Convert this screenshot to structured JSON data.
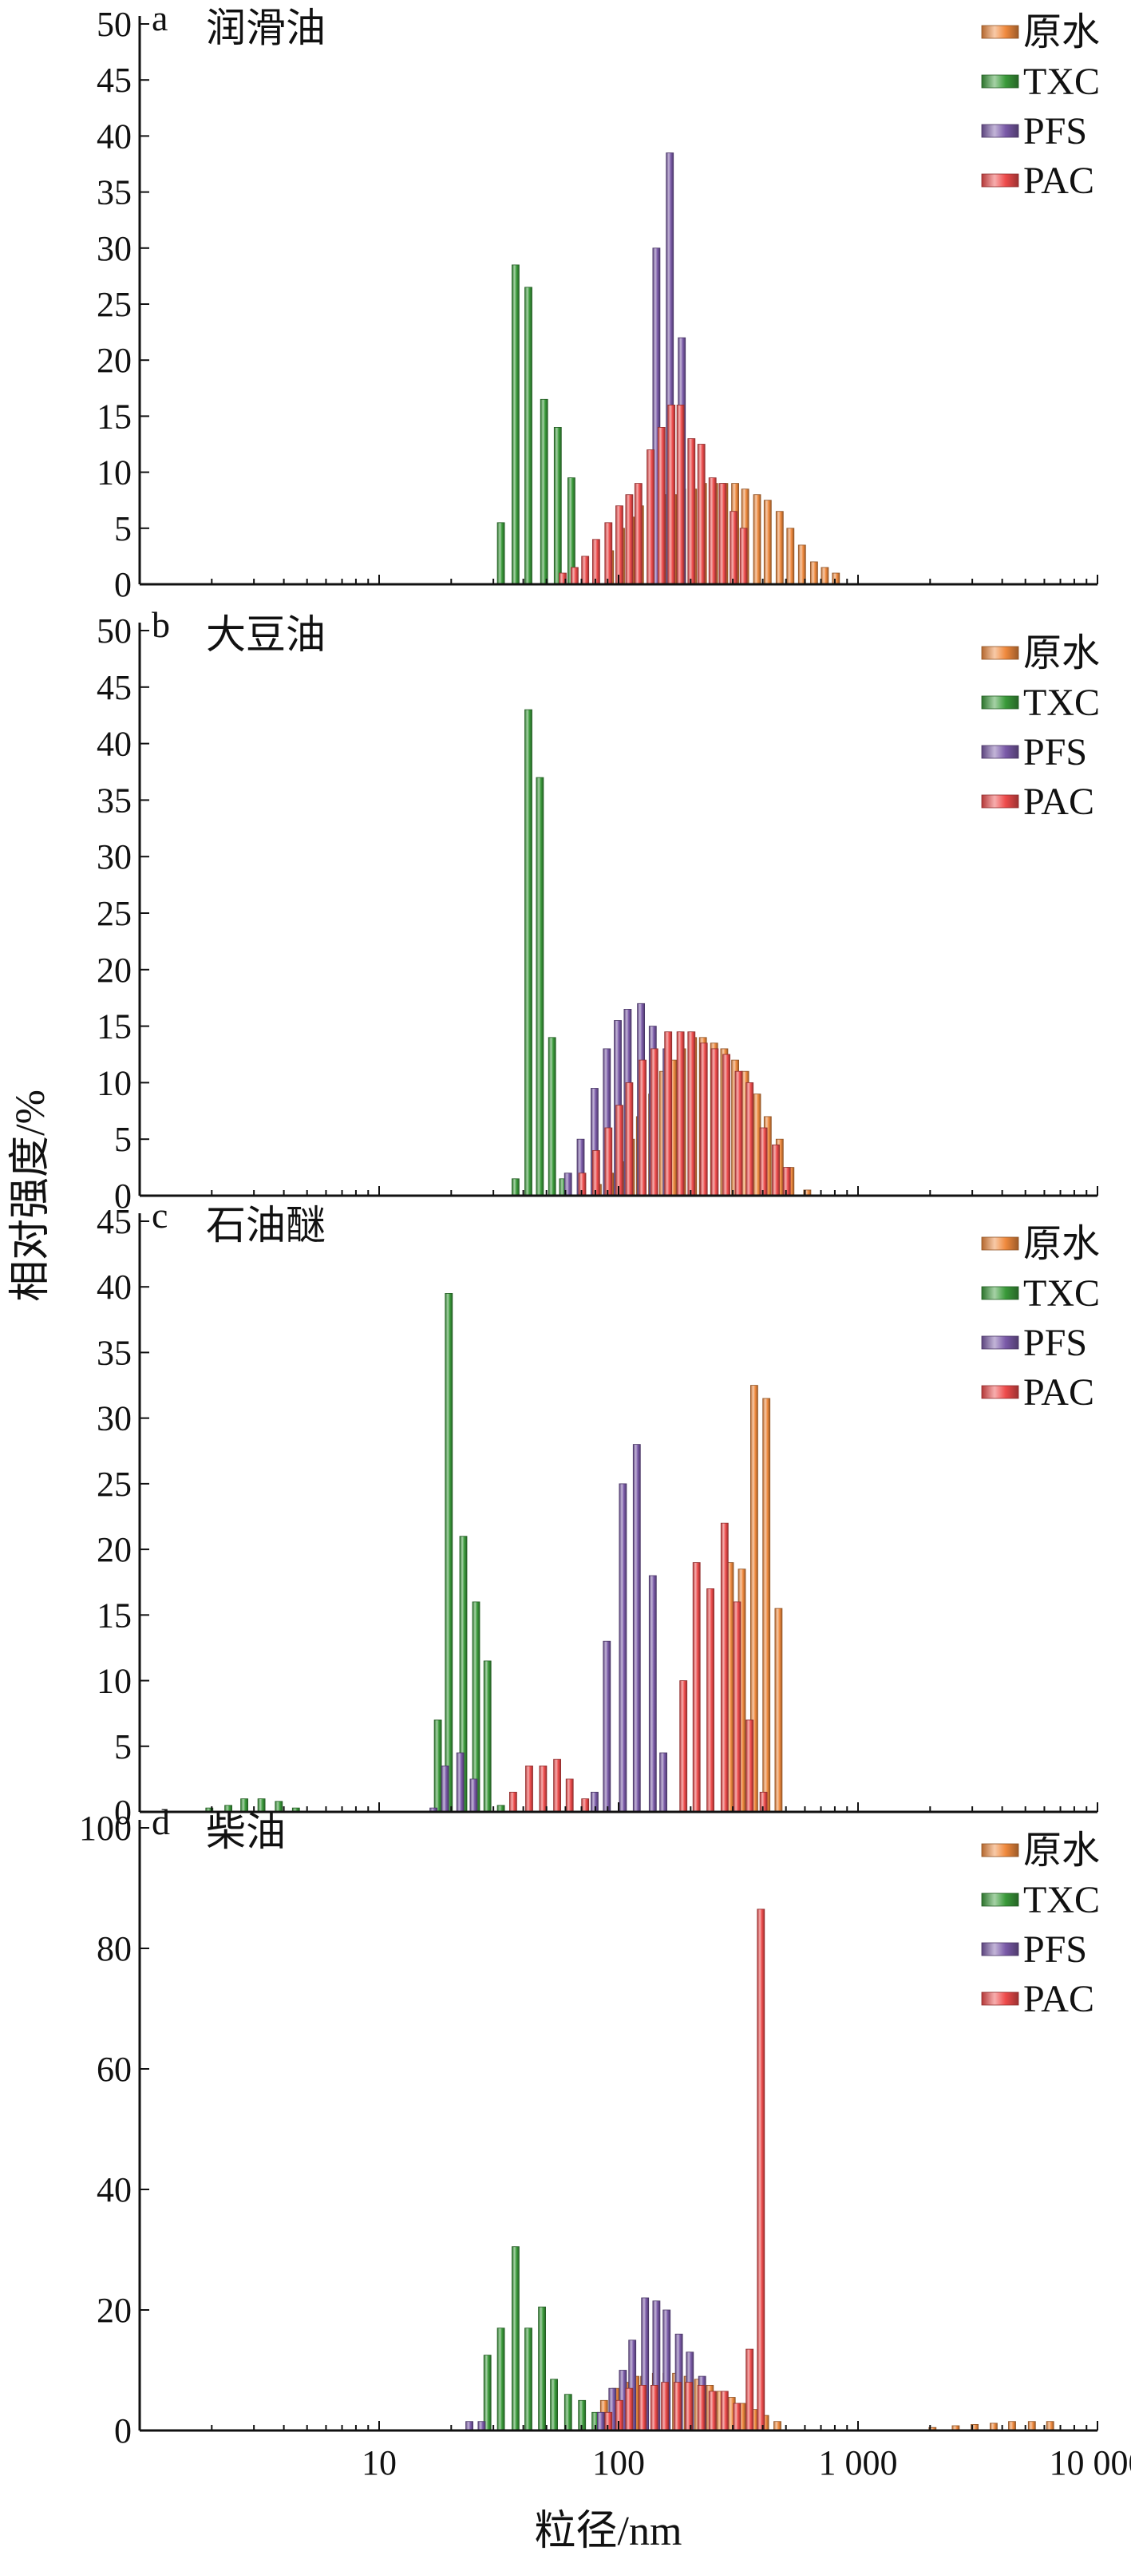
{
  "y_axis_title": "相对强度/%",
  "x_axis_title": "粒径/nm",
  "x_ticks": [
    {
      "value": 10,
      "label": "10"
    },
    {
      "value": 100,
      "label": "100"
    },
    {
      "value": 1000,
      "label": "1 000"
    },
    {
      "value": 10000,
      "label": "10 000"
    }
  ],
  "legend_labels": [
    "原水",
    "TXC",
    "PFS",
    "PAC"
  ],
  "colors": {
    "原水": "#f08a3e",
    "TXC": "#3a9a3a",
    "PFS": "#7a5aa8",
    "PAC": "#ee4b4b"
  },
  "chart_data": [
    {
      "type": "bar",
      "panel": "a",
      "title": "润滑油",
      "xscale": "log",
      "xlim": [
        1,
        10000
      ],
      "ylim": [
        0,
        50
      ],
      "yticks": [
        0,
        5,
        10,
        15,
        20,
        25,
        30,
        35,
        40,
        45,
        50
      ],
      "legend": "top-right",
      "series": [
        {
          "name": "原水",
          "x": [
            90,
            100,
            110,
            120,
            135,
            150,
            165,
            180,
            200,
            220,
            245,
            270,
            300,
            330,
            370,
            410,
            460,
            510,
            570,
            640,
            710,
            790
          ],
          "values": [
            3,
            5,
            6,
            7,
            7.5,
            8,
            8,
            8.5,
            8.5,
            9,
            9,
            9,
            9,
            8.5,
            8,
            7.5,
            6.5,
            5,
            3.5,
            2,
            1.5,
            1
          ]
        },
        {
          "name": "TXC",
          "x": [
            33,
            38,
            43,
            50,
            57,
            65
          ],
          "values": [
            5.5,
            28.5,
            26.5,
            16.5,
            14,
            9.5
          ]
        },
        {
          "name": "PFS",
          "x": [
            145,
            165,
            185
          ],
          "values": [
            30,
            38.5,
            22
          ]
        },
        {
          "name": "PAC",
          "x": [
            58,
            65,
            72,
            80,
            90,
            100,
            110,
            120,
            135,
            150,
            165,
            180,
            200,
            220,
            245,
            270,
            300,
            330
          ],
          "values": [
            1,
            1.5,
            2.5,
            4,
            5.5,
            7,
            8,
            9,
            12,
            14,
            16,
            16,
            13,
            12.5,
            9.5,
            9,
            6.5,
            5
          ]
        }
      ]
    },
    {
      "type": "bar",
      "panel": "b",
      "title": "大豆油",
      "xscale": "log",
      "xlim": [
        1,
        10000
      ],
      "ylim": [
        0,
        50
      ],
      "yticks": [
        0,
        5,
        10,
        15,
        20,
        25,
        30,
        35,
        40,
        45,
        50
      ],
      "legend": "top-right",
      "series": [
        {
          "name": "原水",
          "x": [
            80,
            90,
            100,
            110,
            120,
            135,
            150,
            165,
            180,
            200,
            220,
            245,
            270,
            300,
            330,
            370,
            410,
            460,
            510,
            600
          ],
          "values": [
            1,
            2,
            3,
            5,
            7,
            9,
            11,
            12,
            13,
            14,
            14,
            13.5,
            13,
            12,
            11,
            9,
            7,
            5,
            2.5,
            0.5
          ]
        },
        {
          "name": "TXC",
          "x": [
            38,
            43,
            48,
            54,
            60
          ],
          "values": [
            1.5,
            43,
            37,
            14,
            1.5
          ]
        },
        {
          "name": "PFS",
          "x": [
            62,
            70,
            80,
            90,
            100,
            110,
            125,
            140,
            160
          ],
          "values": [
            2,
            5,
            9.5,
            13,
            15.5,
            16.5,
            17,
            15,
            13
          ]
        },
        {
          "name": "PAC",
          "x": [
            70,
            80,
            90,
            100,
            110,
            125,
            140,
            160,
            180,
            200,
            225,
            250,
            280,
            315,
            350,
            400,
            450,
            500
          ],
          "values": [
            2,
            4,
            6,
            8,
            10,
            12,
            13,
            14.5,
            14.5,
            14.5,
            13.5,
            13,
            12.5,
            11,
            10,
            6,
            4.5,
            2.5
          ]
        }
      ]
    },
    {
      "type": "bar",
      "panel": "c",
      "title": "石油醚",
      "xscale": "log",
      "xlim": [
        1,
        10000
      ],
      "ylim": [
        0,
        45
      ],
      "yticks": [
        0,
        5,
        10,
        15,
        20,
        25,
        30,
        35,
        40,
        45
      ],
      "legend": "top-right",
      "series": [
        {
          "name": "原水",
          "x": [
            285,
            320,
            360,
            405,
            455
          ],
          "values": [
            19,
            18.5,
            32.5,
            31.5,
            15.5
          ]
        },
        {
          "name": "TXC",
          "x": [
            2.0,
            2.4,
            2.8,
            3.3,
            3.9,
            4.6,
            18,
            20,
            23,
            26,
            29,
            33
          ],
          "values": [
            0.3,
            0.5,
            1,
            1,
            0.8,
            0.3,
            7,
            39.5,
            21,
            16,
            11.5,
            0.5
          ]
        },
        {
          "name": "PFS",
          "x": [
            17,
            19,
            22,
            25,
            80,
            90,
            105,
            120,
            140,
            155
          ],
          "values": [
            0.3,
            3.5,
            4.5,
            2.5,
            1.5,
            13,
            25,
            28,
            18,
            4.5
          ]
        },
        {
          "name": "PAC",
          "x": [
            36,
            42,
            48,
            55,
            62,
            72,
            185,
            210,
            240,
            275,
            310,
            350,
            400
          ],
          "values": [
            1.5,
            3.5,
            3.5,
            4,
            2.5,
            1,
            10,
            19,
            17,
            22,
            16,
            7,
            1.5
          ]
        }
      ]
    },
    {
      "type": "bar",
      "panel": "d",
      "title": "柴油",
      "xscale": "log",
      "xlim": [
        1,
        10000
      ],
      "ylim": [
        0,
        100
      ],
      "yticks": [
        0,
        20,
        40,
        60,
        80,
        100
      ],
      "legend": "top-right",
      "series": [
        {
          "name": "原水",
          "x": [
            85,
            95,
            105,
            115,
            125,
            140,
            155,
            170,
            190,
            210,
            235,
            260,
            290,
            320,
            360,
            400,
            450,
            2000,
            2500,
            3000,
            3600,
            4300,
            5200,
            6200
          ],
          "values": [
            5,
            7,
            8,
            9,
            9,
            9.5,
            9.5,
            9.5,
            9,
            8.5,
            7.5,
            6.5,
            5.5,
            4.5,
            3.5,
            2.5,
            1.5,
            0.5,
            0.8,
            1,
            1.2,
            1.5,
            1.5,
            1.5
          ]
        },
        {
          "name": "TXC",
          "x": [
            29,
            33,
            38,
            43,
            49,
            55,
            63,
            72,
            82
          ],
          "values": [
            12.5,
            17,
            30.5,
            17,
            20.5,
            8.5,
            6,
            5,
            3
          ]
        },
        {
          "name": "PFS",
          "x": [
            24,
            27,
            85,
            95,
            105,
            115,
            130,
            145,
            160,
            180,
            200,
            225
          ],
          "values": [
            1.5,
            1.5,
            3,
            7,
            10,
            15,
            22,
            21.5,
            20,
            16,
            13,
            9
          ]
        },
        {
          "name": "PAC",
          "x": [
            90,
            100,
            110,
            125,
            140,
            155,
            175,
            195,
            220,
            245,
            275,
            310,
            350,
            390
          ],
          "values": [
            3,
            5,
            7,
            7.5,
            7.5,
            8,
            8,
            8,
            7.5,
            6.5,
            6.5,
            4.5,
            13.5,
            86.5
          ]
        }
      ]
    }
  ]
}
